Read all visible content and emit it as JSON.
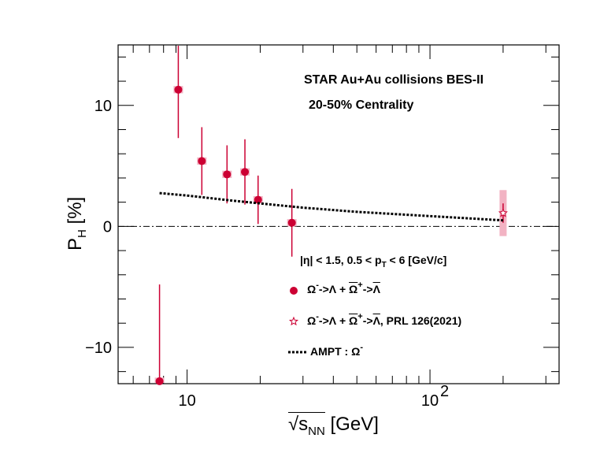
{
  "chart_data": {
    "type": "scatter",
    "xscale": "log",
    "xlim": [
      5.2,
      340
    ],
    "ylim": [
      -13,
      15
    ],
    "xlabel_parts": {
      "root": "s",
      "sub": "NN",
      "unit": "[GeV]"
    },
    "ylabel_parts": {
      "main": "P",
      "sub": "H",
      "unit": "[%]"
    },
    "xticks": [
      {
        "value": 10,
        "label": "10"
      },
      {
        "value": 100,
        "label": "10",
        "exp": "2"
      }
    ],
    "yticks": [
      {
        "value": -10,
        "label": "−10"
      },
      {
        "value": 0,
        "label": "0"
      },
      {
        "value": 10,
        "label": "10"
      }
    ],
    "annotations": [
      "STAR  Au+Au collisions BES-II",
      "20-50% Centrality"
    ],
    "cut_label": "|η| < 1.5, 0.5 < p",
    "cut_label_sub": "T",
    "cut_label_rest": " < 6 [GeV/c]",
    "reference_line_y": 0,
    "series": [
      {
        "key": "bes2",
        "color": "#cc0033",
        "marker": "circle",
        "points": [
          {
            "x": 7.7,
            "y": -12.8,
            "err": 8.0,
            "sys": 0.3
          },
          {
            "x": 9.2,
            "y": 11.3,
            "err": 4.0,
            "sys": 0.3
          },
          {
            "x": 11.5,
            "y": 5.4,
            "err": 2.8,
            "sys": 0.3
          },
          {
            "x": 14.6,
            "y": 4.3,
            "err": 2.4,
            "sys": 0.3
          },
          {
            "x": 17.3,
            "y": 4.5,
            "err": 2.7,
            "sys": 0.3
          },
          {
            "x": 19.6,
            "y": 2.2,
            "err": 2.0,
            "sys": 0.3
          },
          {
            "x": 27.0,
            "y": 0.3,
            "err": 2.8,
            "sys": 0.3
          }
        ]
      },
      {
        "key": "prl",
        "color": "#cc0033",
        "marker": "open-star",
        "points": [
          {
            "x": 200,
            "y": 1.1,
            "err": 0.8,
            "sys": 1.9
          }
        ]
      },
      {
        "key": "ampt",
        "color": "#000000",
        "marker": "dashed-line",
        "line": [
          [
            7.7,
            2.75
          ],
          [
            10,
            2.55
          ],
          [
            15,
            2.15
          ],
          [
            20,
            1.9
          ],
          [
            30,
            1.55
          ],
          [
            50,
            1.2
          ],
          [
            100,
            0.85
          ],
          [
            200,
            0.5
          ]
        ]
      }
    ],
    "legend": [
      {
        "marker": "circle",
        "parts": [
          "Ω",
          "-",
          "->Λ + ",
          "Ω",
          "+",
          "->",
          "Λ",
          ""
        ]
      },
      {
        "marker": "open-star",
        "parts": [
          "Ω",
          "-",
          "->Λ + ",
          "Ω",
          "+",
          "->",
          "Λ",
          ", PRL 126(2021)"
        ]
      },
      {
        "marker": "dashed-line",
        "text": "AMPT : Ω",
        "sup": "-"
      }
    ]
  }
}
